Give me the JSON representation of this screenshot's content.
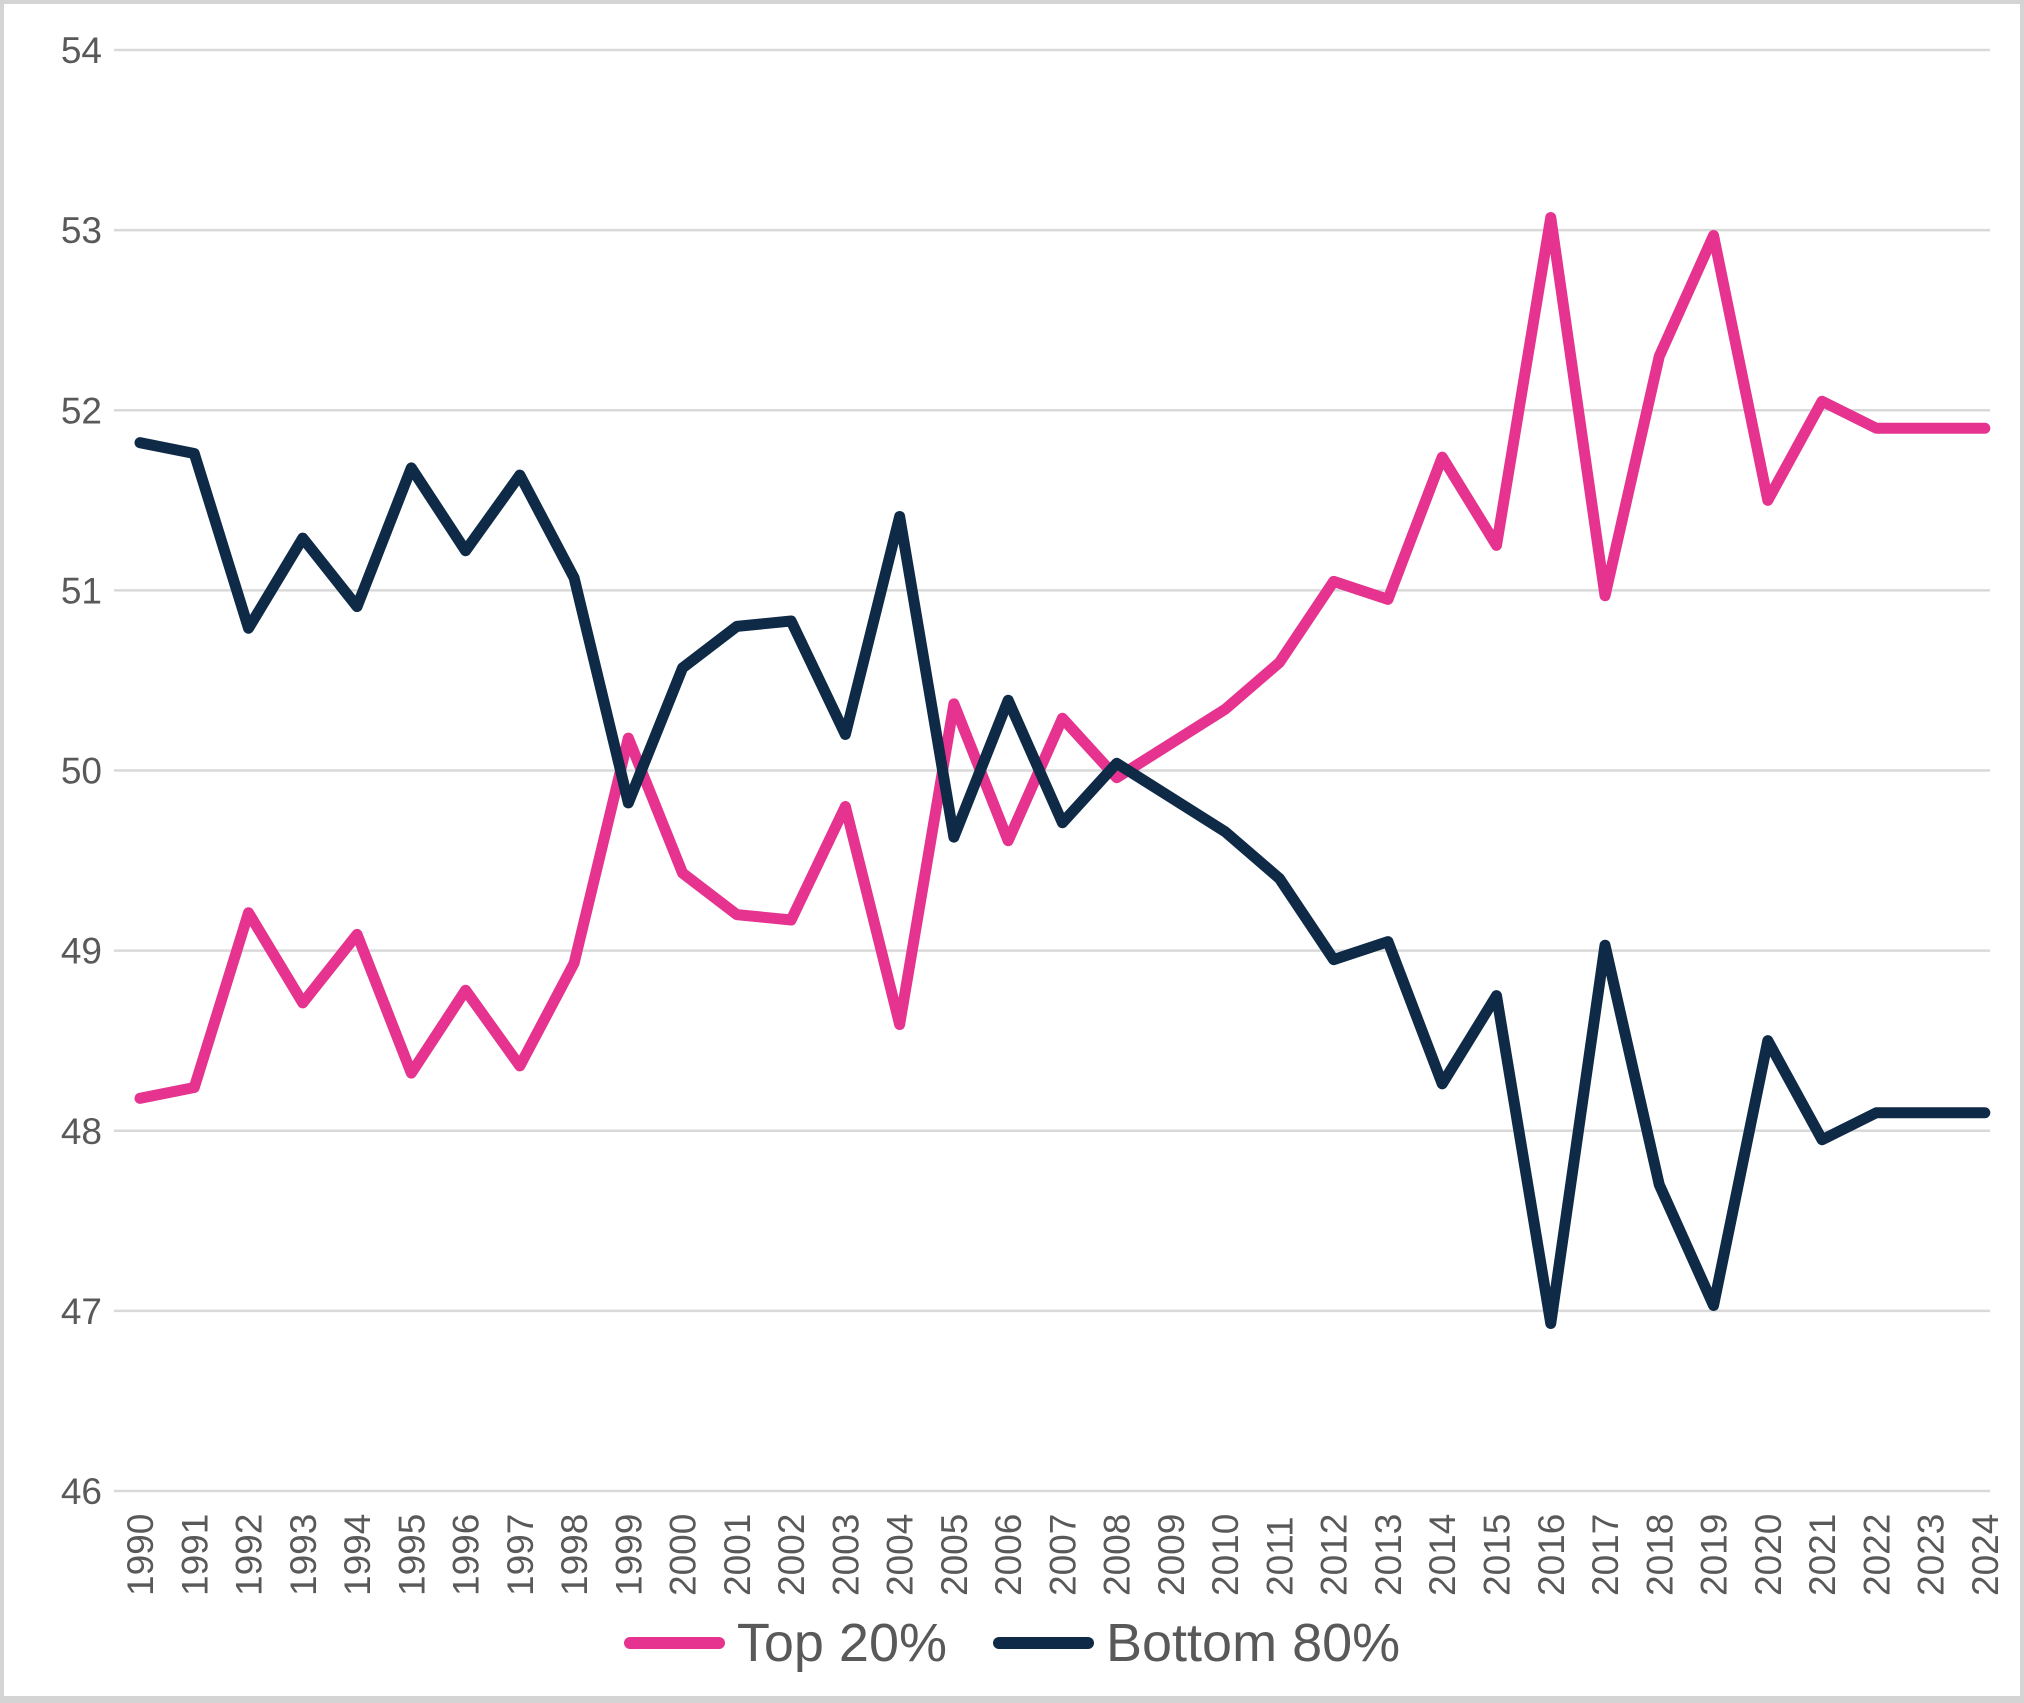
{
  "chart_data": {
    "type": "line",
    "title": "",
    "xlabel": "",
    "ylabel": "",
    "x": [
      "1990",
      "1991",
      "1992",
      "1993",
      "1994",
      "1995",
      "1996",
      "1997",
      "1998",
      "1999",
      "2000",
      "2001",
      "2002",
      "2003",
      "2004",
      "2005",
      "2006",
      "2007",
      "2008",
      "2009",
      "2010",
      "2011",
      "2012",
      "2013",
      "2014",
      "2015",
      "2016",
      "2017",
      "2018",
      "2019",
      "2020",
      "2021",
      "2022",
      "2023",
      "2024"
    ],
    "series": [
      {
        "name": "Top 20%",
        "color": "#e5338f",
        "values": [
          48.18,
          48.24,
          49.21,
          48.71,
          49.09,
          48.32,
          48.78,
          48.36,
          48.93,
          50.18,
          49.43,
          49.2,
          49.17,
          49.8,
          48.59,
          50.37,
          49.61,
          50.29,
          49.96,
          50.15,
          50.34,
          50.6,
          51.05,
          50.95,
          51.74,
          51.25,
          53.07,
          50.97,
          52.3,
          52.97,
          51.5,
          52.05,
          51.9,
          51.9,
          51.9
        ]
      },
      {
        "name": "Bottom 80%",
        "color": "#0e2a47",
        "values": [
          51.82,
          51.76,
          50.79,
          51.29,
          50.91,
          51.68,
          51.22,
          51.64,
          51.07,
          49.82,
          50.57,
          50.8,
          50.83,
          50.2,
          51.41,
          49.63,
          50.39,
          49.71,
          50.04,
          49.85,
          49.66,
          49.4,
          48.95,
          49.05,
          48.26,
          48.75,
          46.93,
          49.03,
          47.7,
          47.03,
          48.5,
          47.95,
          48.1,
          48.1,
          48.1
        ]
      }
    ],
    "ylim": [
      46,
      54
    ],
    "yticks": [
      "46",
      "47",
      "48",
      "49",
      "50",
      "51",
      "52",
      "53",
      "54"
    ],
    "grid": "horizontal",
    "gridline_color": "#d9d9d9",
    "axis_text_color": "#595959",
    "x_tick_rotation": "vertical-bottom-up",
    "legend_position": "bottom-center",
    "line_width": 11
  },
  "legend": {
    "top20_label": "Top 20%",
    "bottom80_label": "Bottom 80%"
  }
}
